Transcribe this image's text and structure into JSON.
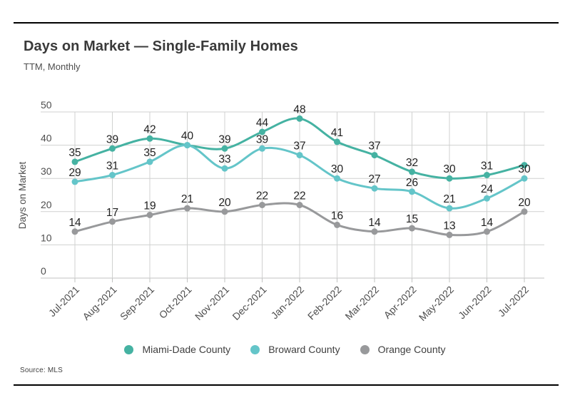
{
  "header": {
    "title": "Days on Market — Single-Family Homes",
    "subtitle": "TTM, Monthly"
  },
  "footer": {
    "source_label": "Source:",
    "source_value": "MLS"
  },
  "colors": {
    "miami_dade": "#45b2a2",
    "broward": "#64c5c9",
    "orange_county": "#98999b",
    "grid": "#d0d1d0",
    "axis": "#c2c3c2",
    "axis_text": "#4e4e4e",
    "data_label": "#1f1f1f",
    "title_text": "#3a3a3a",
    "rule": "#000000"
  },
  "chart_data": {
    "type": "line",
    "title": "Days on Market — Single-Family Homes",
    "subtitle": "TTM, Monthly",
    "xlabel": "",
    "ylabel": "Days on Market",
    "ylim": [
      0,
      50
    ],
    "yticks": [
      0,
      10,
      20,
      30,
      40,
      50
    ],
    "grid": true,
    "legend_position": "bottom",
    "marker": "circle",
    "point_labels": true,
    "categories": [
      "Jul-2021",
      "Aug-2021",
      "Sep-2021",
      "Oct-2021",
      "Nov-2021",
      "Dec-2021",
      "Jan-2022",
      "Feb-2022",
      "Mar-2022",
      "Apr-2022",
      "May-2022",
      "Jun-2022",
      "Jul-2022"
    ],
    "series": [
      {
        "name": "Miami-Dade County",
        "color": "#45b2a2",
        "values": [
          35,
          39,
          42,
          40,
          39,
          44,
          48,
          41,
          37,
          32,
          30,
          31,
          34
        ],
        "visible_labels": [
          "35",
          "39",
          "42",
          "40",
          "39",
          "44",
          "48",
          "41",
          "37",
          "32",
          "30",
          "31",
          ""
        ]
      },
      {
        "name": "Broward County",
        "color": "#64c5c9",
        "values": [
          29,
          31,
          35,
          40,
          33,
          39,
          37,
          30,
          27,
          26,
          21,
          24,
          30
        ],
        "visible_labels": [
          "29",
          "31",
          "35",
          "",
          "33",
          "39",
          "37",
          "30",
          "27",
          "26",
          "21",
          "24",
          "30"
        ]
      },
      {
        "name": "Orange County",
        "color": "#98999b",
        "values": [
          14,
          17,
          19,
          21,
          20,
          22,
          22,
          16,
          14,
          15,
          13,
          14,
          20
        ],
        "visible_labels": [
          "14",
          "17",
          "19",
          "21",
          "20",
          "22",
          "22",
          "16",
          "14",
          "15",
          "13",
          "14",
          "20"
        ]
      }
    ]
  }
}
